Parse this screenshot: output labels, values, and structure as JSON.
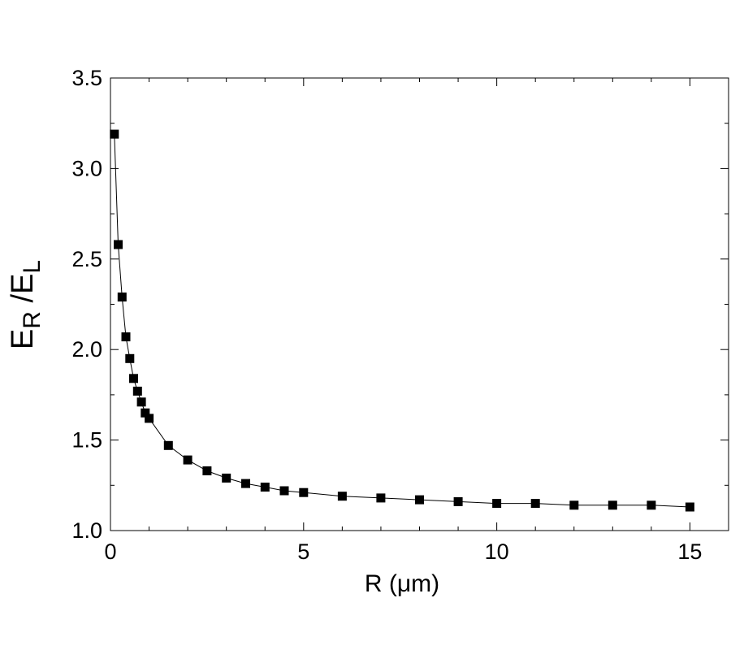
{
  "chart_data": {
    "type": "line",
    "title": "",
    "xlabel": "R (μm)",
    "ylabel": {
      "main_1": "E",
      "sub_1": "R",
      "separator": " /",
      "main_2": "E",
      "sub_2": "L"
    },
    "xlim": [
      0,
      16
    ],
    "ylim": [
      1.0,
      3.5
    ],
    "x_ticks": [
      0,
      5,
      10,
      15
    ],
    "x_tick_labels": [
      "0",
      "5",
      "10",
      "15"
    ],
    "y_ticks": [
      1.0,
      1.5,
      2.0,
      2.5,
      3.0,
      3.5
    ],
    "y_tick_labels": [
      "1.0",
      "1.5",
      "2.0",
      "2.5",
      "3.0",
      "3.5"
    ],
    "x_minor_step": 1,
    "y_minor_step": 0.25,
    "grid": false,
    "legend": "none",
    "marker": "square",
    "marker_color": "#000000",
    "line_color": "#000000",
    "series": [
      {
        "x": [
          0.1,
          0.2,
          0.3,
          0.4,
          0.5,
          0.6,
          0.7,
          0.8,
          0.9,
          1.0,
          1.5,
          2.0,
          2.5,
          3.0,
          3.5,
          4.0,
          4.5,
          5.0,
          6.0,
          7.0,
          8.0,
          9.0,
          10.0,
          11.0,
          12.0,
          13.0,
          14.0,
          15.0
        ],
        "y": [
          3.19,
          2.58,
          2.29,
          2.07,
          1.95,
          1.84,
          1.77,
          1.71,
          1.65,
          1.62,
          1.47,
          1.39,
          1.33,
          1.29,
          1.26,
          1.24,
          1.22,
          1.21,
          1.19,
          1.18,
          1.17,
          1.16,
          1.15,
          1.15,
          1.14,
          1.14,
          1.14,
          1.13
        ]
      }
    ]
  }
}
